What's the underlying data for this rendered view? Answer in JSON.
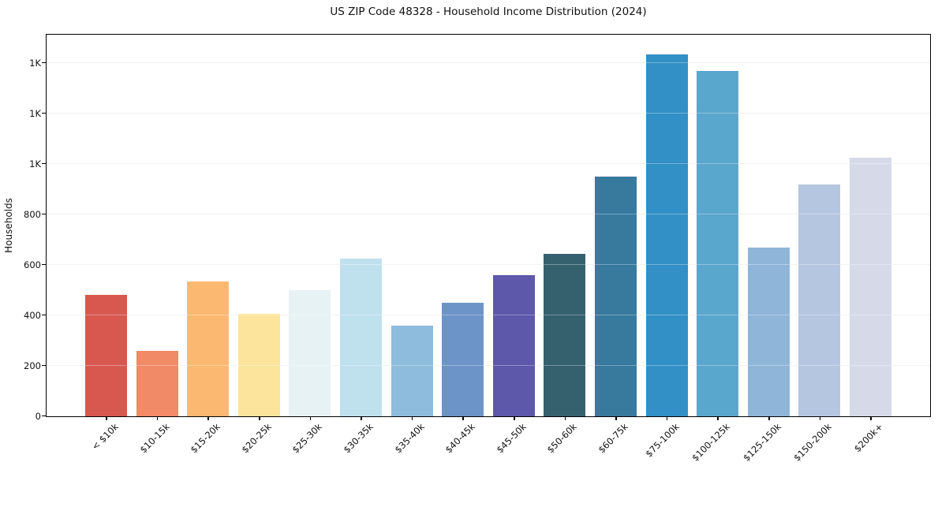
{
  "chart_data": {
    "type": "bar",
    "title": "US ZIP Code 48328 - Household Income Distribution (2024)",
    "xlabel": "",
    "ylabel": "Households",
    "categories": [
      "< $10k",
      "$10-15k",
      "$15-20k",
      "$20-25k",
      "$25-30k",
      "$30-35k",
      "$35-40k",
      "$40-45k",
      "$45-50k",
      "$50-60k",
      "$60-75k",
      "$75-100k",
      "$100-125k",
      "$125-150k",
      "$150-200k",
      "$200k+"
    ],
    "values": [
      480,
      260,
      535,
      405,
      500,
      625,
      360,
      450,
      560,
      645,
      950,
      1435,
      1370,
      670,
      920,
      1025
    ],
    "bar_colors": [
      "#d85850",
      "#f18a66",
      "#fbb871",
      "#fde49c",
      "#e6f2f3",
      "#bfe0ed",
      "#8ebcdd",
      "#6d94c9",
      "#5d58a9",
      "#35616f",
      "#377a9e",
      "#3390c6",
      "#5aa7cd",
      "#8fb5d9",
      "#b5c6e0",
      "#d6d9e8"
    ],
    "ylim": [
      0,
      1510
    ],
    "yticks": [
      {
        "value": 0,
        "label": "0"
      },
      {
        "value": 200,
        "label": "200"
      },
      {
        "value": 400,
        "label": "400"
      },
      {
        "value": 600,
        "label": "600"
      },
      {
        "value": 800,
        "label": "800"
      },
      {
        "value": 1000,
        "label": "1K"
      },
      {
        "value": 1200,
        "label": "1K"
      },
      {
        "value": 1400,
        "label": "1K"
      }
    ],
    "grid": "horizontal",
    "gridline_color": "#ececec",
    "axis_color": "#000000",
    "background_color": "#ffffff",
    "legend": "none",
    "xtick_rotation_deg": 45
  }
}
